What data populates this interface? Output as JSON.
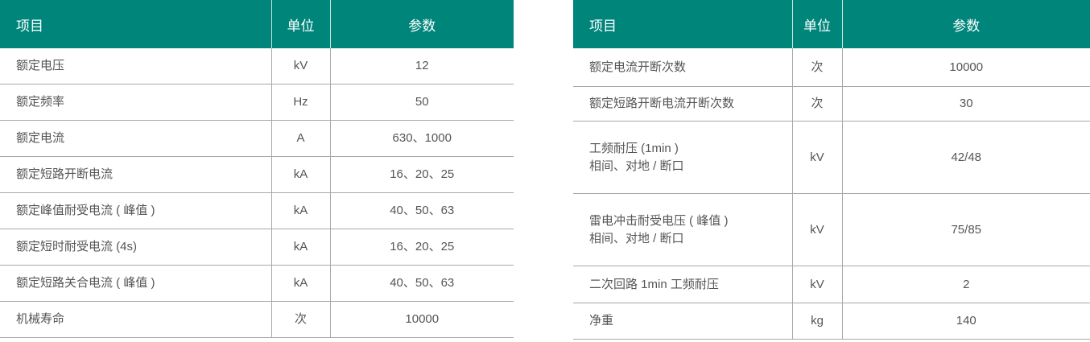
{
  "colors": {
    "header_bg": "#00857b"
  },
  "left_table": {
    "headers": [
      "项目",
      "单位",
      "参数"
    ],
    "rows": [
      {
        "item": "额定电压",
        "unit": "kV",
        "value": "12"
      },
      {
        "item": "额定频率",
        "unit": "Hz",
        "value": "50"
      },
      {
        "item": "额定电流",
        "unit": "A",
        "value": "630、1000"
      },
      {
        "item": "额定短路开断电流",
        "unit": "kA",
        "value": "16、20、25"
      },
      {
        "item": "额定峰值耐受电流 ( 峰值 )",
        "unit": "kA",
        "value": "40、50、63"
      },
      {
        "item": "额定短时耐受电流 (4s)",
        "unit": "kA",
        "value": "16、20、25"
      },
      {
        "item": "额定短路关合电流 ( 峰值 )",
        "unit": "kA",
        "value": "40、50、63"
      },
      {
        "item": "机械寿命",
        "unit": "次",
        "value": "10000"
      }
    ]
  },
  "right_table": {
    "headers": [
      "项目",
      "单位",
      "参数"
    ],
    "rows": [
      {
        "item": "额定电流开断次数",
        "sub": "",
        "unit": "次",
        "value": "10000"
      },
      {
        "item": "额定短路开断电流开断次数",
        "sub": "",
        "unit": "次",
        "value": "30"
      },
      {
        "item": "工频耐压 (1min )",
        "sub": "相间、对地 / 断口",
        "unit": "kV",
        "value": "42/48"
      },
      {
        "item": "雷电冲击耐受电压 ( 峰值 )",
        "sub": "相间、对地 / 断口",
        "unit": "kV",
        "value": "75/85"
      },
      {
        "item": "二次回路 1min 工频耐压",
        "sub": "",
        "unit": "kV",
        "value": "2"
      },
      {
        "item": "净重",
        "sub": "",
        "unit": "kg",
        "value": "140"
      }
    ]
  }
}
